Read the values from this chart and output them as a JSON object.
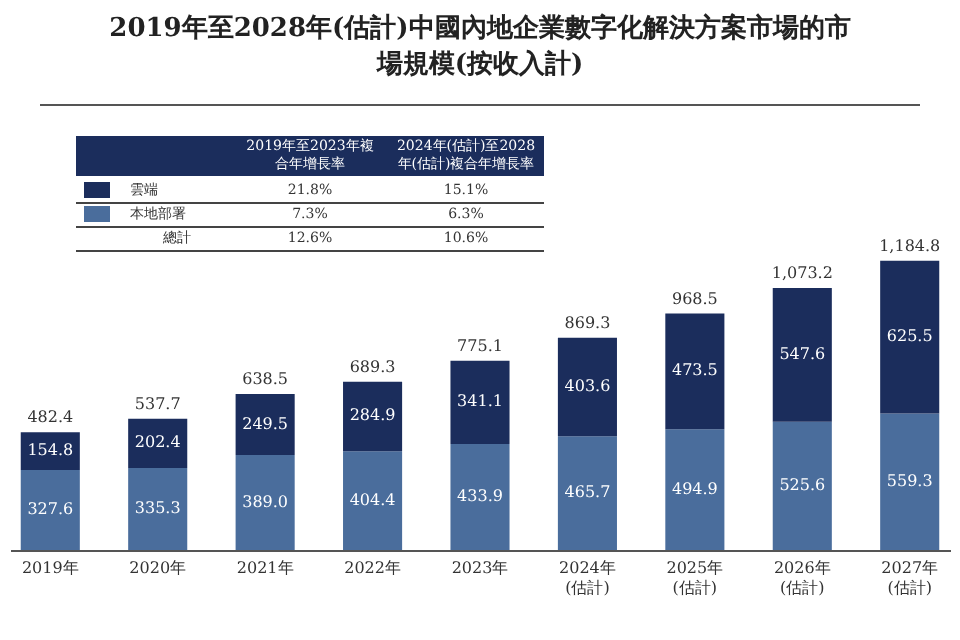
{
  "chart_data": {
    "type": "bar",
    "title": "2019年至2028年(估計)中國內地企業數字化解決方案市場的市場規模(按收入計)",
    "categories": [
      "2019年",
      "2020年",
      "2021年",
      "2022年",
      "2023年",
      "2024年\n(估計)",
      "2025年\n(估計)",
      "2026年\n(估計)",
      "2027年\n(估計)"
    ],
    "series": [
      {
        "name": "本地部署",
        "color": "#4a6d9c",
        "values": [
          327.6,
          335.3,
          389.0,
          404.4,
          433.9,
          465.7,
          494.9,
          525.6,
          559.3
        ],
        "value_labels": [
          "327.6",
          "335.3",
          "389.0",
          "404.4",
          "433.9",
          "465.7",
          "494.9",
          "525.6",
          "559.3"
        ]
      },
      {
        "name": "雲端",
        "color": "#1b2d5c",
        "values": [
          154.8,
          202.4,
          249.5,
          284.9,
          341.1,
          403.6,
          473.5,
          547.6,
          625.5
        ],
        "value_labels": [
          "154.8",
          "202.4",
          "249.5",
          "284.9",
          "341.1",
          "403.6",
          "473.5",
          "547.6",
          "625.5"
        ]
      }
    ],
    "stacked": true,
    "totals": [
      "482.4",
      "537.7",
      "638.5",
      "689.3",
      "775.1",
      "869.3",
      "968.5",
      "1,073.2",
      "1,184.8"
    ],
    "legend": "top left",
    "annotations": [
      "2019年至2023年複合年增長率",
      "2024年(估計)至2028年(估計)複合年增長率",
      "7.3%",
      "6.3%",
      "21.8%",
      "15.1%",
      "總計",
      "12.6%",
      "10.6%"
    ]
  }
}
